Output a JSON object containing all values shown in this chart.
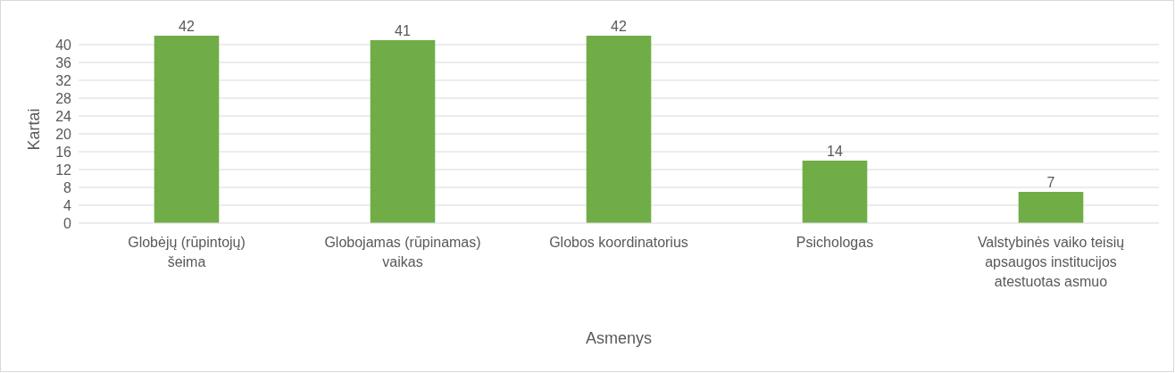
{
  "chart_data": {
    "type": "bar",
    "xlabel": "Asmenys",
    "ylabel": "Kartai",
    "categories": [
      "Globėjų (rūpintojų) šeima",
      "Globojamas (rūpinamas) vaikas",
      "Globos koordinatorius",
      "Psichologas",
      "Valstybinės vaiko teisių apsaugos institucijos atestuotas asmuo"
    ],
    "values": [
      42,
      41,
      42,
      14,
      7
    ],
    "color": "#70ad47",
    "ylim": [
      0,
      42
    ],
    "yticks": [
      0,
      4,
      8,
      12,
      16,
      20,
      24,
      28,
      32,
      36,
      40
    ],
    "grid": "y",
    "data_labels": true
  }
}
